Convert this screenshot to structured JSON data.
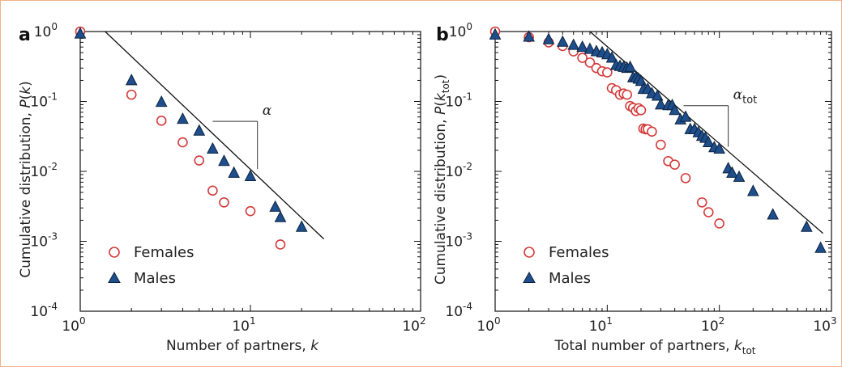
{
  "chart_data": [
    {
      "type": "scatter",
      "panel": "a",
      "xscale": "log",
      "yscale": "log",
      "xlim": [
        1,
        100
      ],
      "ylim": [
        0.0001,
        1
      ],
      "xticks": [
        {
          "base": "10",
          "exp": "0"
        },
        {
          "base": "10",
          "exp": "1"
        },
        {
          "base": "10",
          "exp": "2"
        }
      ],
      "yticks": [
        {
          "base": "10",
          "exp": "-4"
        },
        {
          "base": "10",
          "exp": "-3"
        },
        {
          "base": "10",
          "exp": "-2"
        },
        {
          "base": "10",
          "exp": "-1"
        },
        {
          "base": "10",
          "exp": "0"
        }
      ],
      "xlabel": {
        "text": "Number of partners, ",
        "var": "k",
        "sub": ""
      },
      "ylabel": {
        "text": "Cumulative distribution, ",
        "var": "P",
        "paren_open": "(",
        "arg": "k",
        "sub": "",
        "paren_close": ")"
      },
      "slope_label": {
        "symbol": "α",
        "sub": ""
      },
      "legend_position": "bottom-left",
      "series": [
        {
          "name": "Females",
          "marker": "circle-open",
          "color": "#d43a3a",
          "x": [
            1,
            2,
            3,
            4,
            5,
            6,
            7,
            10,
            15
          ],
          "y": [
            1.0,
            0.125,
            0.053,
            0.026,
            0.0143,
            0.0053,
            0.0036,
            0.0027,
            0.0009
          ]
        },
        {
          "name": "Males",
          "marker": "triangle-filled",
          "color": "#1f4e8c",
          "x": [
            1,
            2,
            3,
            4,
            5,
            6,
            7,
            8,
            10,
            14,
            15,
            20
          ],
          "y": [
            0.93,
            0.2,
            0.098,
            0.056,
            0.038,
            0.021,
            0.014,
            0.0095,
            0.0085,
            0.0031,
            0.0022,
            0.0016
          ]
        }
      ],
      "fit_line": {
        "x": [
          1.4,
          27
        ],
        "y": [
          1.0,
          0.00108
        ]
      },
      "slope_triangle": {
        "x_start": 6,
        "x_end": 11,
        "y_top": 0.052,
        "y_bottom": 0.0108
      }
    },
    {
      "type": "scatter",
      "panel": "b",
      "xscale": "log",
      "yscale": "log",
      "xlim": [
        1,
        1000
      ],
      "ylim": [
        0.0001,
        1
      ],
      "xticks": [
        {
          "base": "10",
          "exp": "0"
        },
        {
          "base": "10",
          "exp": "1"
        },
        {
          "base": "10",
          "exp": "2"
        },
        {
          "base": "10",
          "exp": "3"
        }
      ],
      "yticks": [
        {
          "base": "10",
          "exp": "-4"
        },
        {
          "base": "10",
          "exp": "-3"
        },
        {
          "base": "10",
          "exp": "-2"
        },
        {
          "base": "10",
          "exp": "-1"
        },
        {
          "base": "10",
          "exp": "0"
        }
      ],
      "xlabel": {
        "text": "Total number of partners, ",
        "var": "k",
        "sub": "tot"
      },
      "ylabel": {
        "text": "Cumulative distribution, ",
        "var": "P",
        "paren_open": "(",
        "arg": "k",
        "sub": "tot",
        "paren_close": ")"
      },
      "slope_label": {
        "symbol": "α",
        "sub": "tot"
      },
      "legend_position": "bottom-left",
      "series": [
        {
          "name": "Females",
          "marker": "circle-open",
          "color": "#d43a3a",
          "x": [
            1,
            2,
            3,
            4,
            5,
            6,
            7,
            8,
            9,
            10,
            11,
            12,
            13,
            14,
            15,
            16,
            17,
            18,
            19,
            20,
            21,
            22,
            23,
            25,
            30,
            35,
            40,
            50,
            70,
            80,
            100
          ],
          "y": [
            1.0,
            0.83,
            0.7,
            0.62,
            0.52,
            0.42,
            0.36,
            0.3,
            0.27,
            0.26,
            0.155,
            0.145,
            0.125,
            0.13,
            0.125,
            0.086,
            0.081,
            0.073,
            0.08,
            0.075,
            0.041,
            0.04,
            0.04,
            0.037,
            0.024,
            0.014,
            0.0125,
            0.008,
            0.0036,
            0.0026,
            0.0018
          ]
        },
        {
          "name": "Males",
          "marker": "triangle-filled",
          "color": "#1f4e8c",
          "x": [
            1,
            2,
            3,
            4,
            5,
            6,
            7,
            8,
            9,
            10,
            11,
            12,
            13,
            14,
            15,
            16,
            17,
            18,
            19,
            20,
            21,
            23,
            25,
            28,
            30,
            35,
            38,
            40,
            45,
            50,
            55,
            60,
            65,
            70,
            75,
            80,
            90,
            100,
            120,
            130,
            150,
            200,
            300,
            600,
            800
          ],
          "y": [
            0.9,
            0.84,
            0.77,
            0.71,
            0.64,
            0.6,
            0.56,
            0.52,
            0.5,
            0.47,
            0.42,
            0.33,
            0.32,
            0.31,
            0.3,
            0.31,
            0.22,
            0.22,
            0.21,
            0.195,
            0.15,
            0.15,
            0.13,
            0.12,
            0.09,
            0.088,
            0.088,
            0.075,
            0.055,
            0.06,
            0.04,
            0.04,
            0.036,
            0.032,
            0.03,
            0.026,
            0.022,
            0.021,
            0.011,
            0.0095,
            0.0083,
            0.0052,
            0.0024,
            0.0016,
            0.0008
          ]
        }
      ],
      "fit_line": {
        "x": [
          7,
          840
        ],
        "y": [
          1.0,
          0.0013
        ]
      },
      "slope_triangle": {
        "x_start": 48,
        "x_end": 120,
        "y_top": 0.087,
        "y_bottom": 0.0225
      }
    }
  ],
  "panel_labels": [
    "a",
    "b"
  ],
  "legend_labels": {
    "females": "Females",
    "males": "Males"
  }
}
